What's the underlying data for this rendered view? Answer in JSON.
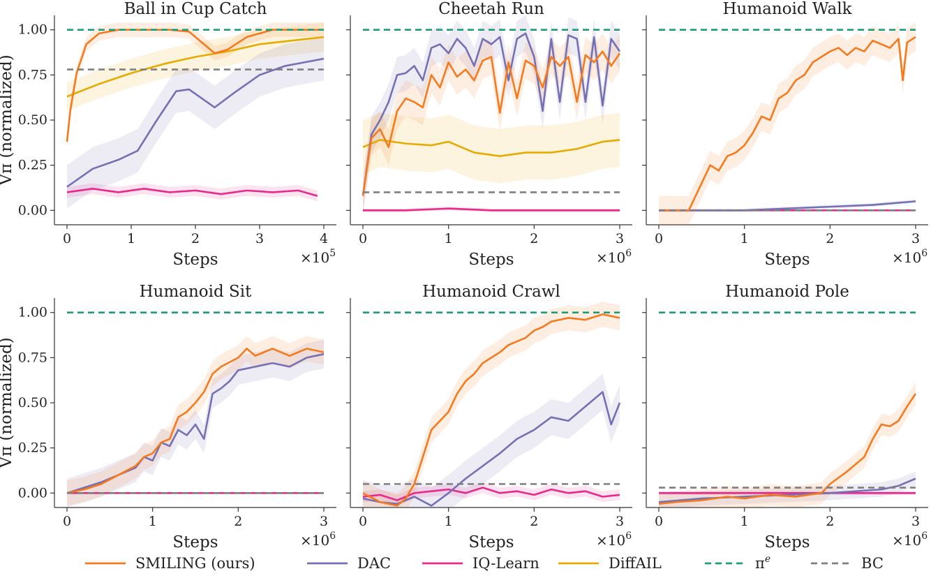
{
  "figure_title": "",
  "legend": [
    {
      "key": "smiling",
      "label": "SMILING (ours)",
      "color": "#f47a1f",
      "dash": "solid"
    },
    {
      "key": "dac",
      "label": "DAC",
      "color": "#7570b3",
      "dash": "solid"
    },
    {
      "key": "iq",
      "label": "IQ-Learn",
      "color": "#e7298a",
      "dash": "solid"
    },
    {
      "key": "diffail",
      "label": "DiffAIL",
      "color": "#e6ab02",
      "dash": "solid"
    },
    {
      "key": "expert",
      "label": "π",
      "label_sup": "e",
      "color": "#1b9e77",
      "dash": "dashed"
    },
    {
      "key": "bc",
      "label": "BC",
      "color": "#7f7f7f",
      "dash": "dashed"
    }
  ],
  "chart_data": [
    {
      "type": "line",
      "title": "Ball in Cup Catch",
      "xlabel": "Steps",
      "ylabel": "V^π (normalized)",
      "x_multiplier": "×10",
      "x_multiplier_exp": "5",
      "xlim": [
        0,
        4
      ],
      "ylim": [
        -0.08,
        1.08
      ],
      "xticks": [
        0,
        1,
        2,
        3,
        4
      ],
      "xtick_labels": [
        "0",
        "1",
        "2",
        "3",
        "4"
      ],
      "yticks": [
        0,
        0.25,
        0.5,
        0.75,
        1
      ],
      "ytick_labels": [
        "0.00",
        "0.25",
        "0.50",
        "0.75",
        "1.00"
      ],
      "baselines": [
        {
          "key": "expert",
          "value": 1.0
        },
        {
          "key": "bc",
          "value": 0.78
        }
      ],
      "series": [
        {
          "key": "diffail",
          "x": [
            0,
            0.5,
            1,
            1.5,
            2,
            2.5,
            3,
            3.5,
            4
          ],
          "y": [
            0.63,
            0.7,
            0.76,
            0.81,
            0.85,
            0.88,
            0.92,
            0.94,
            0.96
          ],
          "band": 0.08
        },
        {
          "key": "iq",
          "x": [
            0,
            0.4,
            0.8,
            1.2,
            1.6,
            2,
            2.4,
            2.8,
            3.2,
            3.6,
            3.9
          ],
          "y": [
            0.1,
            0.12,
            0.1,
            0.12,
            0.1,
            0.11,
            0.09,
            0.11,
            0.1,
            0.11,
            0.08
          ],
          "band": 0.03
        },
        {
          "key": "dac",
          "x": [
            0,
            0.4,
            0.8,
            1.1,
            1.4,
            1.7,
            1.9,
            2.1,
            2.3,
            2.6,
            3,
            3.4,
            3.7,
            4
          ],
          "y": [
            0.13,
            0.23,
            0.28,
            0.33,
            0.5,
            0.66,
            0.67,
            0.62,
            0.57,
            0.65,
            0.75,
            0.8,
            0.82,
            0.84
          ],
          "band": 0.12
        },
        {
          "key": "smiling",
          "x": [
            0,
            0.05,
            0.15,
            0.3,
            0.5,
            0.8,
            1.2,
            1.6,
            1.9,
            2.1,
            2.3,
            2.5,
            2.8,
            3.2,
            3.6,
            4
          ],
          "y": [
            0.38,
            0.55,
            0.76,
            0.92,
            0.98,
            1.0,
            1.0,
            1.0,
            0.99,
            0.93,
            0.87,
            0.89,
            0.96,
            1.0,
            1.0,
            1.0
          ],
          "band": 0.04
        }
      ]
    },
    {
      "type": "line",
      "title": "Cheetah Run",
      "xlabel": "Steps",
      "ylabel": "",
      "x_multiplier": "×10",
      "x_multiplier_exp": "6",
      "xlim": [
        0,
        3
      ],
      "ylim": [
        -0.08,
        1.08
      ],
      "xticks": [
        0,
        1,
        2,
        3
      ],
      "xtick_labels": [
        "0",
        "1",
        "2",
        "3"
      ],
      "yticks": [
        0,
        0.25,
        0.5,
        0.75,
        1
      ],
      "ytick_labels": [
        "",
        "",
        "",
        "",
        ""
      ],
      "baselines": [
        {
          "key": "expert",
          "value": 1.0
        },
        {
          "key": "bc",
          "value": 0.1
        }
      ],
      "series": [
        {
          "key": "diffail",
          "x": [
            0,
            0.2,
            0.5,
            0.8,
            1.0,
            1.3,
            1.6,
            1.9,
            2.2,
            2.5,
            2.8,
            3.0
          ],
          "y": [
            0.35,
            0.39,
            0.37,
            0.36,
            0.38,
            0.32,
            0.3,
            0.32,
            0.32,
            0.34,
            0.38,
            0.39
          ],
          "band": 0.15
        },
        {
          "key": "iq",
          "x": [
            0,
            0.5,
            1.0,
            1.5,
            2.0,
            2.5,
            3.0
          ],
          "y": [
            0.0,
            0.0,
            0.01,
            0.0,
            0.0,
            0.0,
            0.0
          ],
          "band": 0.01
        },
        {
          "key": "dac",
          "x": [
            0,
            0.1,
            0.2,
            0.3,
            0.4,
            0.5,
            0.6,
            0.7,
            0.8,
            0.9,
            1.0,
            1.1,
            1.2,
            1.3,
            1.4,
            1.5,
            1.6,
            1.7,
            1.8,
            1.9,
            2.0,
            2.1,
            2.2,
            2.3,
            2.4,
            2.5,
            2.6,
            2.7,
            2.8,
            2.9,
            3.0
          ],
          "y": [
            0.08,
            0.42,
            0.5,
            0.6,
            0.75,
            0.76,
            0.8,
            0.72,
            0.9,
            0.92,
            0.87,
            0.95,
            0.9,
            0.8,
            0.95,
            0.92,
            0.96,
            0.72,
            0.95,
            0.98,
            0.85,
            0.55,
            0.95,
            0.6,
            0.97,
            0.95,
            0.6,
            0.96,
            0.58,
            0.95,
            0.88
          ],
          "band": 0.1
        },
        {
          "key": "smiling",
          "x": [
            0,
            0.1,
            0.2,
            0.3,
            0.4,
            0.5,
            0.6,
            0.7,
            0.8,
            0.9,
            1.0,
            1.1,
            1.2,
            1.3,
            1.4,
            1.5,
            1.6,
            1.7,
            1.8,
            1.9,
            2.0,
            2.1,
            2.2,
            2.3,
            2.4,
            2.5,
            2.6,
            2.7,
            2.8,
            2.9,
            3.0
          ],
          "y": [
            0.08,
            0.4,
            0.45,
            0.35,
            0.55,
            0.62,
            0.6,
            0.57,
            0.75,
            0.68,
            0.82,
            0.74,
            0.78,
            0.72,
            0.83,
            0.85,
            0.54,
            0.82,
            0.62,
            0.83,
            0.8,
            0.68,
            0.85,
            0.8,
            0.85,
            0.6,
            0.86,
            0.82,
            0.88,
            0.8,
            0.87
          ],
          "band": 0.1
        }
      ]
    },
    {
      "type": "line",
      "title": "Humanoid Walk",
      "xlabel": "Steps",
      "ylabel": "",
      "x_multiplier": "×10",
      "x_multiplier_exp": "6",
      "xlim": [
        0,
        3
      ],
      "ylim": [
        -0.08,
        1.08
      ],
      "xticks": [
        0,
        1,
        2,
        3
      ],
      "xtick_labels": [
        "0",
        "1",
        "2",
        "3"
      ],
      "yticks": [
        0,
        0.25,
        0.5,
        0.75,
        1
      ],
      "ytick_labels": [
        "",
        "",
        "",
        "",
        ""
      ],
      "baselines": [
        {
          "key": "expert",
          "value": 1.0
        },
        {
          "key": "bc",
          "value": 0.0
        }
      ],
      "series": [
        {
          "key": "iq",
          "x": [
            0,
            1.0,
            2.0,
            3.0
          ],
          "y": [
            0.0,
            0.0,
            0.0,
            0.0
          ],
          "band": 0.0
        },
        {
          "key": "dac",
          "x": [
            0,
            0.5,
            1.0,
            1.5,
            2.0,
            2.5,
            3.0
          ],
          "y": [
            0.0,
            0.0,
            0.0,
            0.01,
            0.02,
            0.03,
            0.05
          ],
          "band": 0.01
        },
        {
          "key": "smiling",
          "x": [
            0,
            0.35,
            0.4,
            0.5,
            0.6,
            0.7,
            0.8,
            0.9,
            1.0,
            1.1,
            1.2,
            1.3,
            1.4,
            1.5,
            1.6,
            1.7,
            1.8,
            1.9,
            2.0,
            2.1,
            2.2,
            2.3,
            2.4,
            2.5,
            2.6,
            2.7,
            2.8,
            2.85,
            2.9,
            3.0
          ],
          "y": [
            0.0,
            0.0,
            0.05,
            0.15,
            0.25,
            0.22,
            0.3,
            0.32,
            0.36,
            0.43,
            0.52,
            0.5,
            0.62,
            0.65,
            0.72,
            0.75,
            0.82,
            0.85,
            0.88,
            0.9,
            0.86,
            0.9,
            0.88,
            0.94,
            0.92,
            0.9,
            0.95,
            0.72,
            0.93,
            0.96
          ],
          "band": 0.08
        }
      ]
    },
    {
      "type": "line",
      "title": "Humanoid Sit",
      "xlabel": "Steps",
      "ylabel": "V^π (normalized)",
      "x_multiplier": "×10",
      "x_multiplier_exp": "6",
      "xlim": [
        0,
        3
      ],
      "ylim": [
        -0.08,
        1.08
      ],
      "xticks": [
        0,
        1,
        2,
        3
      ],
      "xtick_labels": [
        "0",
        "1",
        "2",
        "3"
      ],
      "yticks": [
        0,
        0.25,
        0.5,
        0.75,
        1
      ],
      "ytick_labels": [
        "0.00",
        "0.25",
        "0.50",
        "0.75",
        "1.00"
      ],
      "baselines": [
        {
          "key": "expert",
          "value": 1.0
        },
        {
          "key": "bc",
          "value": 0.0
        }
      ],
      "series": [
        {
          "key": "iq",
          "x": [
            0,
            1.0,
            2.0,
            3.0
          ],
          "y": [
            0.0,
            0.0,
            0.0,
            0.0
          ],
          "band": 0.0
        },
        {
          "key": "dac",
          "x": [
            0,
            0.2,
            0.4,
            0.6,
            0.8,
            0.9,
            1.0,
            1.1,
            1.2,
            1.3,
            1.4,
            1.5,
            1.6,
            1.7,
            1.8,
            1.9,
            2.0,
            2.2,
            2.4,
            2.6,
            2.8,
            3.0
          ],
          "y": [
            0.0,
            0.03,
            0.06,
            0.1,
            0.14,
            0.2,
            0.18,
            0.28,
            0.26,
            0.35,
            0.32,
            0.38,
            0.3,
            0.55,
            0.58,
            0.62,
            0.68,
            0.7,
            0.72,
            0.7,
            0.75,
            0.77
          ],
          "band": 0.08
        },
        {
          "key": "smiling",
          "x": [
            0,
            0.2,
            0.4,
            0.6,
            0.8,
            0.9,
            1.0,
            1.1,
            1.2,
            1.3,
            1.4,
            1.5,
            1.6,
            1.7,
            1.8,
            2.0,
            2.1,
            2.2,
            2.4,
            2.6,
            2.8,
            3.0
          ],
          "y": [
            0.0,
            0.02,
            0.05,
            0.1,
            0.15,
            0.2,
            0.22,
            0.28,
            0.3,
            0.42,
            0.45,
            0.5,
            0.56,
            0.66,
            0.7,
            0.75,
            0.8,
            0.76,
            0.8,
            0.76,
            0.8,
            0.78
          ],
          "band": 0.07
        }
      ]
    },
    {
      "type": "line",
      "title": "Humanoid Crawl",
      "xlabel": "Steps",
      "ylabel": "",
      "x_multiplier": "×10",
      "x_multiplier_exp": "6",
      "xlim": [
        0,
        3
      ],
      "ylim": [
        -0.08,
        1.08
      ],
      "xticks": [
        0,
        1,
        2,
        3
      ],
      "xtick_labels": [
        "0",
        "1",
        "2",
        "3"
      ],
      "yticks": [
        0,
        0.25,
        0.5,
        0.75,
        1
      ],
      "ytick_labels": [
        "",
        "",
        "",
        "",
        ""
      ],
      "baselines": [
        {
          "key": "expert",
          "value": 1.0
        },
        {
          "key": "bc",
          "value": 0.05
        }
      ],
      "series": [
        {
          "key": "iq",
          "x": [
            0,
            0.2,
            0.4,
            0.6,
            0.8,
            1.0,
            1.2,
            1.4,
            1.6,
            1.8,
            2.0,
            2.2,
            2.4,
            2.6,
            2.8,
            3.0
          ],
          "y": [
            -0.02,
            -0.01,
            -0.04,
            0.0,
            0.01,
            0.02,
            0.0,
            0.03,
            0.0,
            0.01,
            -0.01,
            0.02,
            0.0,
            0.01,
            -0.02,
            -0.01
          ],
          "band": 0.03
        },
        {
          "key": "dac",
          "x": [
            0,
            0.2,
            0.4,
            0.6,
            0.8,
            1.0,
            1.2,
            1.4,
            1.6,
            1.8,
            2.0,
            2.2,
            2.4,
            2.6,
            2.8,
            2.9,
            3.0
          ],
          "y": [
            -0.03,
            -0.05,
            -0.06,
            -0.02,
            -0.07,
            0.0,
            0.08,
            0.15,
            0.22,
            0.3,
            0.35,
            0.42,
            0.4,
            0.48,
            0.56,
            0.38,
            0.5
          ],
          "band": 0.1
        },
        {
          "key": "smiling",
          "x": [
            0,
            0.2,
            0.4,
            0.5,
            0.6,
            0.7,
            0.8,
            0.9,
            1.0,
            1.1,
            1.2,
            1.3,
            1.4,
            1.5,
            1.6,
            1.7,
            1.8,
            1.9,
            2.0,
            2.1,
            2.2,
            2.4,
            2.6,
            2.8,
            3.0
          ],
          "y": [
            0.0,
            -0.05,
            -0.07,
            -0.03,
            0.05,
            0.2,
            0.35,
            0.4,
            0.45,
            0.55,
            0.62,
            0.66,
            0.72,
            0.75,
            0.78,
            0.82,
            0.84,
            0.86,
            0.9,
            0.92,
            0.95,
            0.97,
            0.96,
            0.99,
            0.97
          ],
          "band": 0.07
        }
      ]
    },
    {
      "type": "line",
      "title": "Humanoid Pole",
      "xlabel": "Steps",
      "ylabel": "",
      "x_multiplier": "×10",
      "x_multiplier_exp": "6",
      "xlim": [
        0,
        3
      ],
      "ylim": [
        -0.08,
        1.08
      ],
      "xticks": [
        0,
        1,
        2,
        3
      ],
      "xtick_labels": [
        "0",
        "1",
        "2",
        "3"
      ],
      "yticks": [
        0,
        0.25,
        0.5,
        0.75,
        1
      ],
      "ytick_labels": [
        "",
        "",
        "",
        "",
        ""
      ],
      "baselines": [
        {
          "key": "expert",
          "value": 1.0
        },
        {
          "key": "bc",
          "value": 0.03
        }
      ],
      "series": [
        {
          "key": "iq",
          "x": [
            0,
            0.5,
            1.0,
            1.5,
            2.0,
            2.5,
            3.0
          ],
          "y": [
            0.0,
            0.0,
            0.0,
            0.0,
            0.0,
            0.0,
            0.0
          ],
          "band": 0.01
        },
        {
          "key": "dac",
          "x": [
            0,
            0.5,
            1.0,
            1.5,
            2.0,
            2.3,
            2.6,
            2.8,
            3.0
          ],
          "y": [
            -0.05,
            -0.03,
            -0.02,
            -0.01,
            0.0,
            0.01,
            0.02,
            0.04,
            0.08
          ],
          "band": 0.04
        },
        {
          "key": "smiling",
          "x": [
            0,
            0.2,
            0.5,
            0.8,
            1.0,
            1.3,
            1.6,
            1.9,
            2.0,
            2.2,
            2.4,
            2.5,
            2.6,
            2.7,
            2.8,
            2.9,
            3.0
          ],
          "y": [
            -0.06,
            -0.05,
            -0.04,
            -0.02,
            -0.03,
            -0.01,
            -0.02,
            0.0,
            0.05,
            0.12,
            0.2,
            0.3,
            0.38,
            0.37,
            0.4,
            0.48,
            0.55
          ],
          "band": 0.06
        }
      ]
    }
  ]
}
